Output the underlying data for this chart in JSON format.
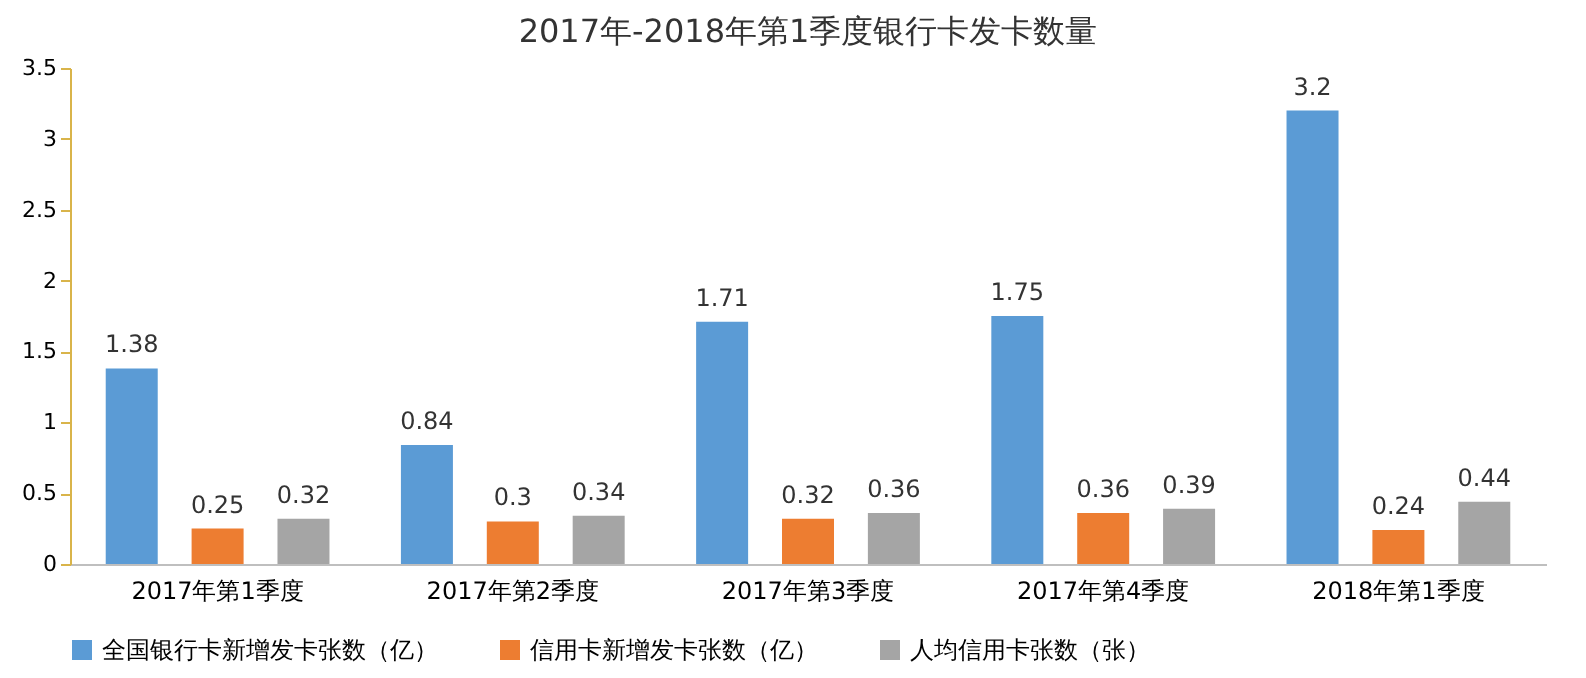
{
  "chart_data": {
    "type": "bar",
    "title": "2017年-2018年第1季度银行卡发卡数量",
    "categories": [
      "2017年第1季度",
      "2017年第2季度",
      "2017年第3季度",
      "2017年第4季度",
      "2018年第1季度"
    ],
    "series": [
      {
        "name": "全国银行卡新增发卡张数（亿）",
        "color": "#5b9bd5",
        "values": [
          1.38,
          0.84,
          1.71,
          1.75,
          3.2
        ]
      },
      {
        "name": "信用卡新增发卡张数（亿）",
        "color": "#ed7d31",
        "values": [
          0.25,
          0.3,
          0.32,
          0.36,
          0.24
        ]
      },
      {
        "name": "人均信用卡张数（张）",
        "color": "#a5a5a5",
        "values": [
          0.32,
          0.34,
          0.36,
          0.39,
          0.44
        ]
      }
    ],
    "ylim": [
      0,
      3.5
    ],
    "yticks": [
      0,
      0.5,
      1,
      1.5,
      2,
      2.5,
      3,
      3.5
    ],
    "data_labels": true,
    "grid": false,
    "legend": "bottom"
  }
}
